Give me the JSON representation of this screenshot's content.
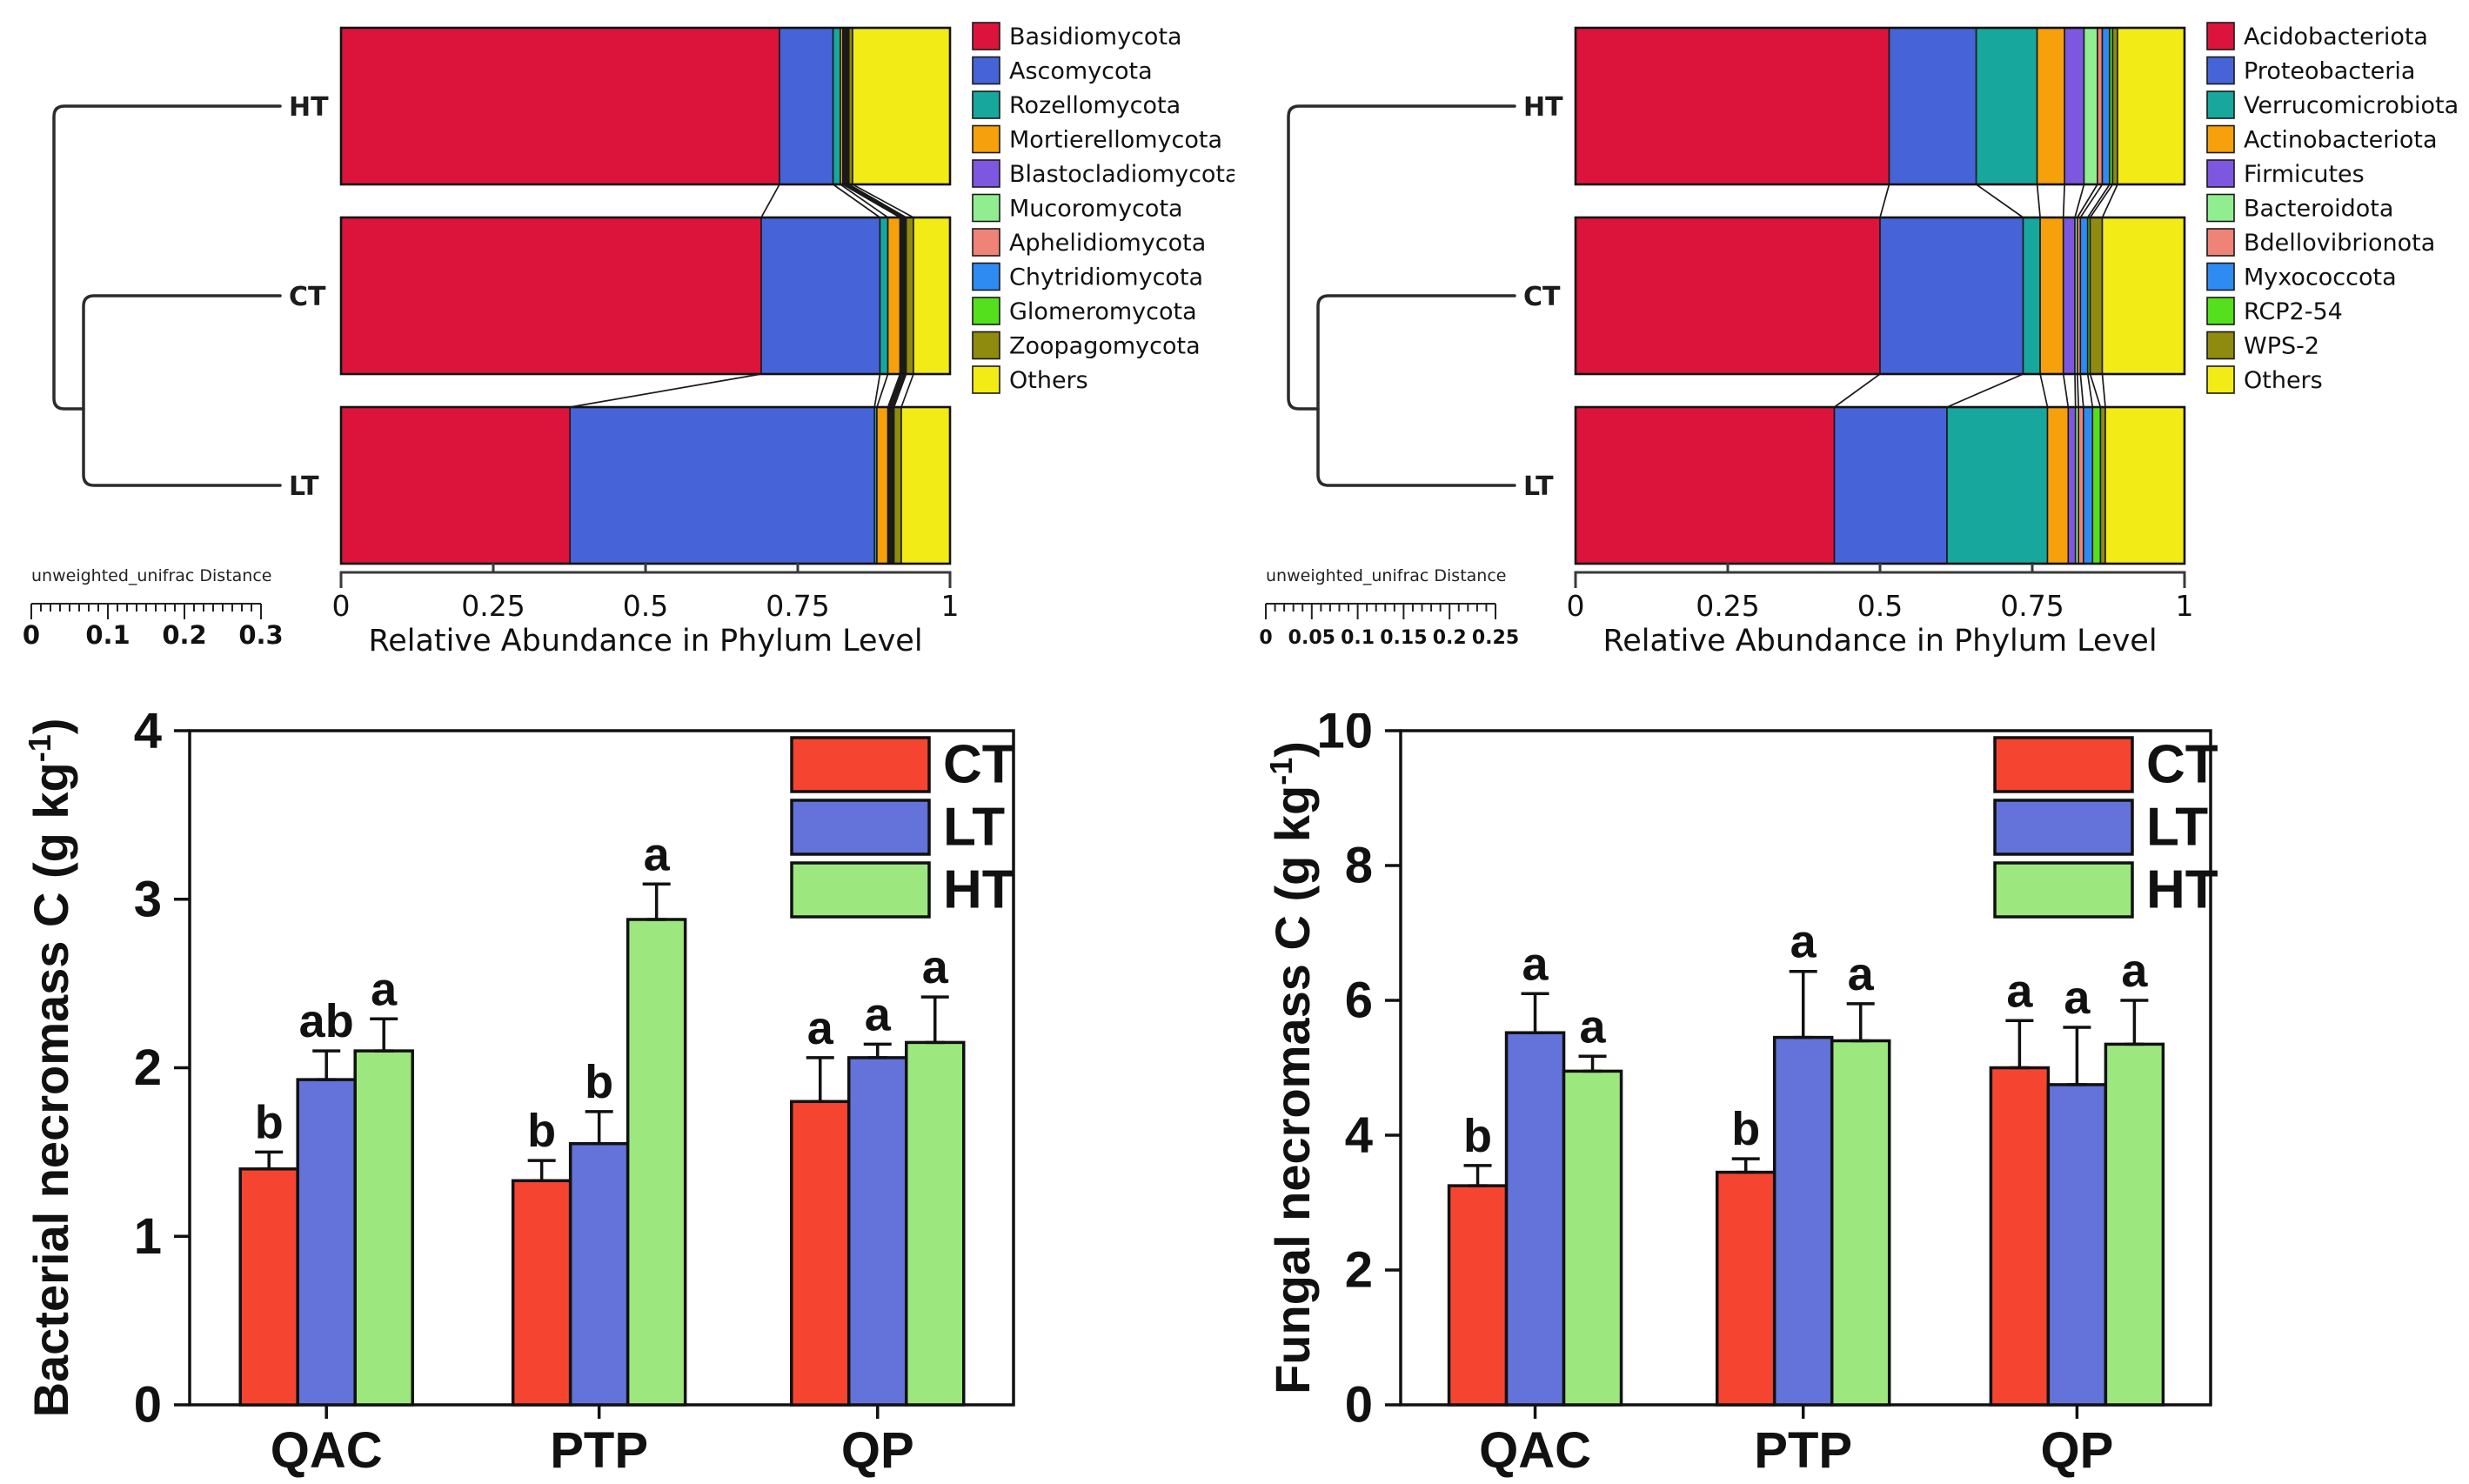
{
  "figure": {
    "background": "#ffffff"
  },
  "chart_data": [
    {
      "id": "fungal_taxa",
      "type": "bar",
      "subtype": "stacked-horizontal-with-dendrogram",
      "samples": [
        "HT",
        "CT",
        "LT"
      ],
      "xlabel": "Relative Abundance in Phylum Level",
      "xticks": [
        "0",
        "0.25",
        "0.5",
        "0.75",
        "1"
      ],
      "xlim": [
        0,
        1
      ],
      "legend_position": "right",
      "distance_scale": {
        "label": "unweighted_unifrac Distance",
        "ticks": [
          "0",
          "0.1",
          "0.2",
          "0.3"
        ],
        "minors": 7,
        "small": false
      },
      "series": [
        {
          "name": "Basidiomycota",
          "color": "#dc143c"
        },
        {
          "name": "Ascomycota",
          "color": "#4664d8"
        },
        {
          "name": "Rozellomycota",
          "color": "#17a79d"
        },
        {
          "name": "Mortierellomycota",
          "color": "#f6a00b"
        },
        {
          "name": "Blastocladiomycota",
          "color": "#7e57e0"
        },
        {
          "name": "Mucoromycota",
          "color": "#90ee90"
        },
        {
          "name": "Aphelidiomycota",
          "color": "#ef8378"
        },
        {
          "name": "Chytridiomycota",
          "color": "#2e8bf2"
        },
        {
          "name": "Glomeromycota",
          "color": "#54e01c"
        },
        {
          "name": "Zoopagomycota",
          "color": "#8f8b0e"
        },
        {
          "name": "Others",
          "color": "#f3eb16"
        }
      ],
      "values": {
        "HT": [
          0.72,
          0.088,
          0.012,
          0.004,
          0.002,
          0.002,
          0.002,
          0.002,
          0.002,
          0.006,
          0.16
        ],
        "CT": [
          0.69,
          0.195,
          0.013,
          0.02,
          0.002,
          0.002,
          0.002,
          0.002,
          0.002,
          0.012,
          0.06
        ],
        "LT": [
          0.376,
          0.5,
          0.004,
          0.018,
          0.002,
          0.002,
          0.002,
          0.002,
          0.002,
          0.012,
          0.08
        ]
      }
    },
    {
      "id": "bacterial_taxa",
      "type": "bar",
      "subtype": "stacked-horizontal-with-dendrogram",
      "samples": [
        "HT",
        "CT",
        "LT"
      ],
      "xlabel": "Relative Abundance in Phylum Level",
      "xticks": [
        "0",
        "0.25",
        "0.5",
        "0.75",
        "1"
      ],
      "xlim": [
        0,
        1
      ],
      "legend_position": "right",
      "distance_scale": {
        "label": "unweighted_unifrac Distance",
        "ticks": [
          "0",
          "0.05",
          "0.1",
          "0.15",
          "0.2",
          "0.25"
        ],
        "minors": 4,
        "small": true
      },
      "series": [
        {
          "name": "Acidobacteriota",
          "color": "#dc143c"
        },
        {
          "name": "Proteobacteria",
          "color": "#4664d8"
        },
        {
          "name": "Verrucomicrobiota",
          "color": "#17a79d"
        },
        {
          "name": "Actinobacteriota",
          "color": "#f6a00b"
        },
        {
          "name": "Firmicutes",
          "color": "#7e57e0"
        },
        {
          "name": "Bacteroidota",
          "color": "#90ee90"
        },
        {
          "name": "Bdellovibrionota",
          "color": "#ef8378"
        },
        {
          "name": "Myxococcota",
          "color": "#2e8bf2"
        },
        {
          "name": "RCP2-54",
          "color": "#54e01c"
        },
        {
          "name": "WPS-2",
          "color": "#8f8b0e"
        },
        {
          "name": "Others",
          "color": "#f3eb16"
        }
      ],
      "values": {
        "HT": [
          0.515,
          0.143,
          0.1,
          0.045,
          0.032,
          0.022,
          0.008,
          0.012,
          0.005,
          0.008,
          0.11
        ],
        "CT": [
          0.5,
          0.235,
          0.028,
          0.038,
          0.019,
          0.004,
          0.005,
          0.012,
          0.004,
          0.02,
          0.135
        ],
        "LT": [
          0.425,
          0.185,
          0.165,
          0.034,
          0.012,
          0.005,
          0.008,
          0.015,
          0.013,
          0.008,
          0.13
        ]
      }
    },
    {
      "id": "bacterial_necromass",
      "type": "bar",
      "subtype": "grouped-vertical-with-errors",
      "ylabel": "Bacterial necromass C",
      "unit": {
        "prefix": "(g kg",
        "sup": "-1",
        "suffix": ")"
      },
      "ylim": [
        0,
        4
      ],
      "yticks": [
        "0",
        "1",
        "2",
        "3",
        "4"
      ],
      "categories": [
        "QAC",
        "PTP",
        "QP"
      ],
      "legend": [
        "CT",
        "LT",
        "HT"
      ],
      "series": [
        {
          "name": "CT",
          "color": "#f54531",
          "values": [
            1.4,
            1.33,
            1.8
          ],
          "errors": [
            0.1,
            0.12,
            0.26
          ],
          "letters": [
            "b",
            "b",
            "a"
          ]
        },
        {
          "name": "LT",
          "color": "#6373d9",
          "values": [
            1.93,
            1.55,
            2.06
          ],
          "errors": [
            0.17,
            0.19,
            0.08
          ],
          "letters": [
            "ab",
            "b",
            "a"
          ]
        },
        {
          "name": "HT",
          "color": "#9ce87e",
          "values": [
            2.1,
            2.88,
            2.15
          ],
          "errors": [
            0.19,
            0.21,
            0.27
          ],
          "letters": [
            "a",
            "a",
            "a"
          ]
        }
      ]
    },
    {
      "id": "fungal_necromass",
      "type": "bar",
      "subtype": "grouped-vertical-with-errors",
      "ylabel": "Fungal necromass C",
      "unit": {
        "prefix": "(g kg",
        "sup": "-1",
        "suffix": ")"
      },
      "ylim": [
        0,
        10
      ],
      "yticks": [
        "0",
        "2",
        "4",
        "6",
        "8",
        "10"
      ],
      "categories": [
        "QAC",
        "PTP",
        "QP"
      ],
      "legend": [
        "CT",
        "LT",
        "HT"
      ],
      "series": [
        {
          "name": "CT",
          "color": "#f54531",
          "values": [
            3.25,
            3.45,
            5.0
          ],
          "errors": [
            0.3,
            0.2,
            0.7
          ],
          "letters": [
            "b",
            "b",
            "a"
          ]
        },
        {
          "name": "LT",
          "color": "#6373d9",
          "values": [
            5.52,
            5.45,
            4.75
          ],
          "errors": [
            0.58,
            0.98,
            0.85
          ],
          "letters": [
            "a",
            "a",
            "a"
          ]
        },
        {
          "name": "HT",
          "color": "#9ce87e",
          "values": [
            4.95,
            5.4,
            5.35
          ],
          "errors": [
            0.22,
            0.55,
            0.65
          ],
          "letters": [
            "a",
            "a",
            "a"
          ]
        }
      ]
    }
  ]
}
